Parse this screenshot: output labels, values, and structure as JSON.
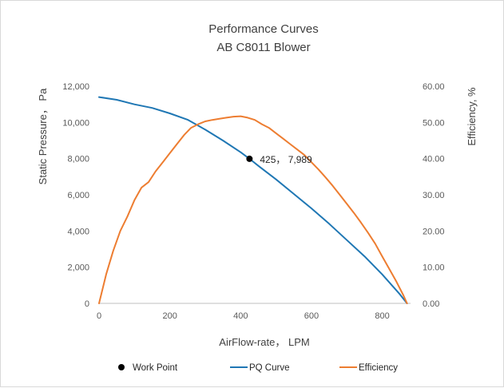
{
  "chart_data": {
    "type": "line",
    "title": "Performance Curves",
    "subtitle": "AB C8011 Blower",
    "xlabel": "AirFlow-rate， LPM",
    "ylabel": "Static Pressure， Pa",
    "y2label": "Efficiency, %",
    "xlim": [
      0,
      880
    ],
    "ylim": [
      0,
      12000
    ],
    "y2lim": [
      0,
      60
    ],
    "x_ticks": [
      "0",
      "200",
      "400",
      "600",
      "800"
    ],
    "x_tick_values": [
      0,
      200,
      400,
      600,
      800
    ],
    "y_ticks": [
      "0",
      "2,000",
      "4,000",
      "6,000",
      "8,000",
      "10,000",
      "12,000"
    ],
    "y_tick_values": [
      0,
      2000,
      4000,
      6000,
      8000,
      10000,
      12000
    ],
    "y2_ticks": [
      "0.00",
      "10.00",
      "20.00",
      "30.00",
      "40.00",
      "50.00",
      "60.00"
    ],
    "y2_tick_values": [
      0,
      10,
      20,
      30,
      40,
      50,
      60
    ],
    "series": [
      {
        "name": "PQ Curve",
        "axis": "left",
        "color": "#1f77b4",
        "x": [
          0,
          50,
          100,
          150,
          200,
          250,
          300,
          350,
          400,
          425,
          450,
          500,
          550,
          600,
          650,
          700,
          750,
          800,
          850,
          870
        ],
        "y": [
          11400,
          11250,
          11000,
          10800,
          10500,
          10150,
          9600,
          9000,
          8350,
          7989,
          7600,
          6850,
          6050,
          5250,
          4400,
          3500,
          2600,
          1600,
          500,
          0
        ]
      },
      {
        "name": "Efficiency",
        "axis": "right",
        "color": "#ed7d31",
        "x": [
          0,
          20,
          40,
          60,
          80,
          100,
          120,
          140,
          160,
          180,
          200,
          220,
          240,
          260,
          280,
          300,
          320,
          340,
          360,
          380,
          400,
          420,
          440,
          460,
          480,
          500,
          520,
          540,
          560,
          580,
          600,
          620,
          640,
          660,
          680,
          700,
          720,
          740,
          760,
          780,
          800,
          820,
          840,
          860,
          870
        ],
        "y": [
          0,
          8,
          14.5,
          20,
          24,
          28.5,
          32,
          33.5,
          36.5,
          39,
          41.5,
          44,
          46.5,
          48.5,
          49.5,
          50.3,
          50.7,
          51,
          51.3,
          51.6,
          51.7,
          51.3,
          50.7,
          49.5,
          48.5,
          47,
          45.5,
          44,
          42.5,
          41,
          39,
          37,
          34.8,
          32.5,
          30,
          27.5,
          25,
          22.3,
          19.5,
          16.5,
          13,
          9.5,
          6,
          2.2,
          0
        ]
      }
    ],
    "work_point": {
      "x": 425,
      "y": 7989,
      "label": "425， 7,989"
    },
    "legend": {
      "position": "bottom",
      "items": [
        {
          "key": "work_point",
          "label": "Work Point",
          "color": "#000000",
          "marker": "dot"
        },
        {
          "key": "pq",
          "label": "PQ Curve",
          "color": "#1f77b4",
          "marker": "line"
        },
        {
          "key": "eff",
          "label": "Efficiency",
          "color": "#ed7d31",
          "marker": "line"
        }
      ]
    },
    "grid": false
  }
}
